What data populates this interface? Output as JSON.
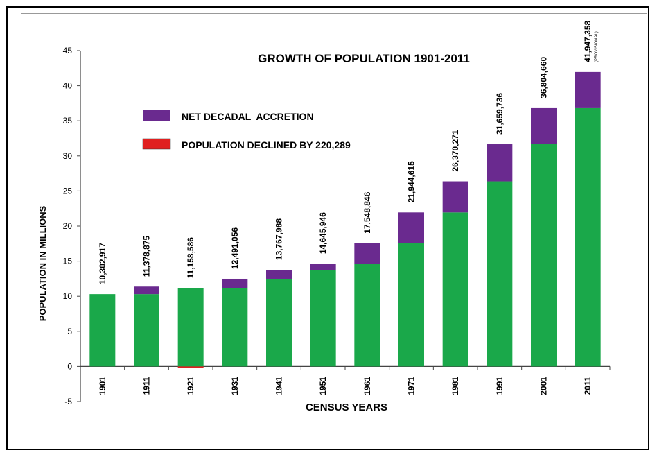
{
  "chart_data": {
    "type": "bar",
    "title": "GROWTH OF POPULATION 1901-2011",
    "xlabel": "CENSUS YEARS",
    "ylabel": "POPULATION IN MILLIONS",
    "ylim": [
      -5,
      45
    ],
    "yticks": [
      -5,
      0,
      5,
      10,
      15,
      20,
      25,
      30,
      35,
      40,
      45
    ],
    "categories": [
      "1901",
      "1911",
      "1921",
      "1931",
      "1941",
      "1951",
      "1961",
      "1971",
      "1981",
      "1991",
      "2001",
      "2011"
    ],
    "population_labels": [
      "10,302,917",
      "11,378,875",
      "11,158,586",
      "12,491,056",
      "13,767,988",
      "14,645,946",
      "17,548,846",
      "21,944,615",
      "26,370,271",
      "31,659,736",
      "36,804,660",
      "41,947,358"
    ],
    "last_label_note": "(PROVISIONAL)",
    "series": [
      {
        "name": "",
        "color": "#1aa84a",
        "values": [
          10.303,
          10.303,
          11.159,
          11.159,
          12.491,
          13.768,
          14.646,
          17.549,
          21.945,
          26.37,
          31.66,
          36.805
        ]
      },
      {
        "name": "NET DECADAL  ACCRETION",
        "color": "#6a2a8f",
        "values": [
          0,
          1.076,
          0,
          1.332,
          1.277,
          0.878,
          2.903,
          4.396,
          4.426,
          5.289,
          5.145,
          5.143
        ]
      },
      {
        "name": "POPULATION DECLINED BY 220,289",
        "color": "#e02020",
        "values": [
          0,
          0,
          -0.22,
          0,
          0,
          0,
          0,
          0,
          0,
          0,
          0,
          0
        ]
      }
    ],
    "legend": [
      {
        "label": "NET DECADAL  ACCRETION",
        "color": "#6a2a8f"
      },
      {
        "label": "POPULATION DECLINED BY 220,289",
        "color": "#e02020"
      }
    ],
    "grid": false,
    "legend_position": "top-left"
  }
}
